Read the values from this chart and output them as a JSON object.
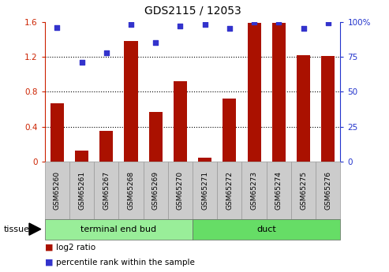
{
  "title": "GDS2115 / 12053",
  "samples": [
    "GSM65260",
    "GSM65261",
    "GSM65267",
    "GSM65268",
    "GSM65269",
    "GSM65270",
    "GSM65271",
    "GSM65272",
    "GSM65273",
    "GSM65274",
    "GSM65275",
    "GSM65276"
  ],
  "log2_ratio": [
    0.67,
    0.13,
    0.35,
    1.38,
    0.57,
    0.92,
    0.05,
    0.72,
    1.59,
    1.59,
    1.22,
    1.21
  ],
  "percentile_rank": [
    96,
    71,
    78,
    98,
    85,
    97,
    98,
    95,
    100,
    100,
    95,
    99
  ],
  "bar_color": "#aa1100",
  "dot_color": "#3333cc",
  "groups": [
    {
      "label": "terminal end bud",
      "start": 0,
      "end": 5,
      "color": "#99ee99"
    },
    {
      "label": "duct",
      "start": 6,
      "end": 11,
      "color": "#66dd66"
    }
  ],
  "ylim_left": [
    0,
    1.6
  ],
  "ylim_right": [
    0,
    100
  ],
  "yticks_left": [
    0,
    0.4,
    0.8,
    1.2,
    1.6
  ],
  "yticks_right": [
    0,
    25,
    50,
    75,
    100
  ],
  "left_axis_color": "#cc2200",
  "right_axis_color": "#2233cc",
  "grid_lines": [
    0.4,
    0.8,
    1.2
  ],
  "tissue_label": "tissue",
  "legend_bar_label": "log2 ratio",
  "legend_dot_label": "percentile rank within the sample",
  "sample_box_color": "#cccccc",
  "sample_box_edge": "#999999"
}
